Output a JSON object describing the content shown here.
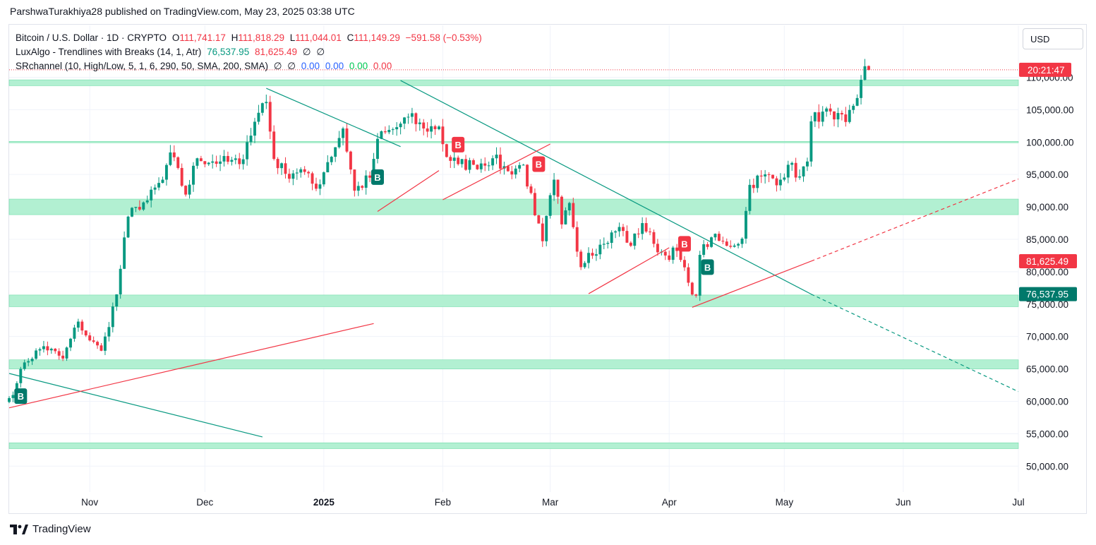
{
  "publisher_line": "ParshwaTurakhiya28 published on TradingView.com, May 23, 2025 03:38 UTC",
  "legend": {
    "symbol": "Bitcoin / U.S. Dollar · 1D · CRYPTO",
    "o_label": "O",
    "o": "111,741.17",
    "h_label": "H",
    "h": "111,818.29",
    "l_label": "L",
    "l": "111,044.01",
    "c_label": "C",
    "c": "111,149.29",
    "change": "−591.58 (−0.53%)",
    "ind1_name": "LuxAlgo - Trendlines with Breaks (14, 1, Atr)",
    "ind1_v1": "76,537.95",
    "ind1_v2": "81,625.49",
    "ind1_z1": "∅",
    "ind1_z2": "∅",
    "ind2_name": "SRchannel (10, High/Low, 5, 1, 6, 290, 50, SMA, 200, SMA)",
    "ind2_z1": "∅",
    "ind2_z2": "∅",
    "ind2_v1": "0.00",
    "ind2_v2": "0.00",
    "ind2_v3": "0.00",
    "ind2_v4": "0.00"
  },
  "currency_button": "USD",
  "price_tags": {
    "countdown": "20:21:47",
    "upper_trend": "81,625.49",
    "lower_trend": "76,537.95"
  },
  "footer_brand": "TradingView",
  "colors": {
    "up": "#089981",
    "down": "#f23645",
    "zone": "#b2f0d2",
    "zone_edge": "#6fdca9",
    "trend_down": "#089981",
    "trend_up": "#f23645"
  },
  "chart_data": {
    "type": "candlestick",
    "title": "Bitcoin / U.S. Dollar · 1D · CRYPTO",
    "y_ticks": [
      50000,
      55000,
      60000,
      65000,
      70000,
      75000,
      80000,
      85000,
      90000,
      95000,
      100000,
      105000,
      110000
    ],
    "y_tick_labels": [
      "50,000.00",
      "55,000.00",
      "60,000.00",
      "65,000.00",
      "70,000.00",
      "75,000.00",
      "80,000.00",
      "85,000.00",
      "90,000.00",
      "95,000.00",
      "100,000.00",
      "105,000.00",
      "110,000.00"
    ],
    "ylim": [
      46000,
      118000
    ],
    "x_labels": [
      {
        "label": "Nov",
        "date": "2024-11-01"
      },
      {
        "label": "Dec",
        "date": "2024-12-01"
      },
      {
        "label": "2025",
        "date": "2025-01-01",
        "bold": true
      },
      {
        "label": "Feb",
        "date": "2025-02-01"
      },
      {
        "label": "Mar",
        "date": "2025-03-01"
      },
      {
        "label": "Apr",
        "date": "2025-04-01"
      },
      {
        "label": "May",
        "date": "2025-05-01"
      },
      {
        "label": "Jun",
        "date": "2025-06-01"
      },
      {
        "label": "Jul",
        "date": "2025-07-01"
      }
    ],
    "x_range": [
      "2024-10-11",
      "2025-07-01"
    ],
    "support_resistance_zones": [
      [
        108700,
        109600
      ],
      [
        99900,
        100100
      ],
      [
        88800,
        91200
      ],
      [
        74600,
        76400
      ],
      [
        65000,
        66400
      ],
      [
        52700,
        53600
      ]
    ],
    "close_price": 111149.29,
    "trendlines": [
      {
        "color": "down",
        "from": [
          "2024-10-11",
          64300
        ],
        "to": [
          "2024-12-16",
          54500
        ]
      },
      {
        "color": "up",
        "from": [
          "2024-10-11",
          59000
        ],
        "to": [
          "2025-01-14",
          72000
        ]
      },
      {
        "color": "down",
        "from": [
          "2024-12-17",
          108300
        ],
        "to": [
          "2025-01-21",
          99300
        ]
      },
      {
        "color": "up",
        "from": [
          "2025-01-15",
          89300
        ],
        "to": [
          "2025-01-31",
          95600
        ]
      },
      {
        "color": "down",
        "from": [
          "2025-01-21",
          109500
        ],
        "to": [
          "2025-05-08",
          76537.95
        ]
      },
      {
        "color": "down",
        "dashed": true,
        "from": [
          "2025-05-08",
          76537.95
        ],
        "to": [
          "2025-07-01",
          61500
        ]
      },
      {
        "color": "up",
        "from": [
          "2025-02-01",
          91100
        ],
        "to": [
          "2025-03-01",
          99700
        ]
      },
      {
        "color": "up",
        "from": [
          "2025-03-11",
          76600
        ],
        "to": [
          "2025-04-01",
          83700
        ]
      },
      {
        "color": "up",
        "from": [
          "2025-04-07",
          74500
        ],
        "to": [
          "2025-05-08",
          81625.49
        ]
      },
      {
        "color": "up",
        "dashed": true,
        "from": [
          "2025-05-08",
          81625.49
        ],
        "to": [
          "2025-07-01",
          94300
        ]
      }
    ],
    "break_labels": [
      {
        "date": "2024-10-14",
        "price": 60800,
        "kind": "bull",
        "text": "B"
      },
      {
        "date": "2025-01-15",
        "price": 94600,
        "kind": "bull",
        "text": "B"
      },
      {
        "date": "2025-02-05",
        "price": 99600,
        "kind": "bear",
        "text": "B"
      },
      {
        "date": "2025-02-26",
        "price": 96600,
        "kind": "bear",
        "text": "B"
      },
      {
        "date": "2025-04-05",
        "price": 84300,
        "kind": "bear",
        "text": "B"
      },
      {
        "date": "2025-04-11",
        "price": 80700,
        "kind": "bull",
        "text": "B"
      }
    ],
    "anchors": [
      [
        "2024-10-11",
        60500
      ],
      [
        "2024-10-13",
        62800
      ],
      [
        "2024-10-15",
        66000
      ],
      [
        "2024-10-20",
        68500
      ],
      [
        "2024-10-25",
        66600
      ],
      [
        "2024-10-29",
        72300
      ],
      [
        "2024-11-01",
        69400
      ],
      [
        "2024-11-04",
        67800
      ],
      [
        "2024-11-05",
        70000
      ],
      [
        "2024-11-08",
        76500
      ],
      [
        "2024-11-11",
        88500
      ],
      [
        "2024-11-13",
        90000
      ],
      [
        "2024-11-16",
        91000
      ],
      [
        "2024-11-20",
        94200
      ],
      [
        "2024-11-22",
        98400
      ],
      [
        "2024-11-26",
        91900
      ],
      [
        "2024-11-29",
        97500
      ],
      [
        "2024-12-05",
        97000
      ],
      [
        "2024-12-10",
        96600
      ],
      [
        "2024-12-12",
        100000
      ],
      [
        "2024-12-16",
        106000
      ],
      [
        "2024-12-17",
        106200
      ],
      [
        "2024-12-19",
        97400
      ],
      [
        "2024-12-22",
        95100
      ],
      [
        "2024-12-26",
        95800
      ],
      [
        "2024-12-30",
        92800
      ],
      [
        "2025-01-02",
        96900
      ],
      [
        "2025-01-06",
        102100
      ],
      [
        "2025-01-09",
        92500
      ],
      [
        "2025-01-13",
        94500
      ],
      [
        "2025-01-15",
        100500
      ],
      [
        "2025-01-20",
        102300
      ],
      [
        "2025-01-23",
        103900
      ],
      [
        "2025-01-27",
        102100
      ],
      [
        "2025-01-31",
        102400
      ],
      [
        "2025-02-02",
        97700
      ],
      [
        "2025-02-05",
        96600
      ],
      [
        "2025-02-09",
        96500
      ],
      [
        "2025-02-14",
        97500
      ],
      [
        "2025-02-18",
        95500
      ],
      [
        "2025-02-22",
        96500
      ],
      [
        "2025-02-25",
        88700
      ],
      [
        "2025-02-27",
        84700
      ],
      [
        "2025-03-02",
        94200
      ],
      [
        "2025-03-04",
        87300
      ],
      [
        "2025-03-06",
        90600
      ],
      [
        "2025-03-09",
        80700
      ],
      [
        "2025-03-11",
        82900
      ],
      [
        "2025-03-15",
        84300
      ],
      [
        "2025-03-19",
        86900
      ],
      [
        "2025-03-22",
        84000
      ],
      [
        "2025-03-25",
        87500
      ],
      [
        "2025-03-28",
        84300
      ],
      [
        "2025-03-31",
        82500
      ],
      [
        "2025-04-03",
        83200
      ],
      [
        "2025-04-06",
        78300
      ],
      [
        "2025-04-08",
        76300
      ],
      [
        "2025-04-09",
        82600
      ],
      [
        "2025-04-12",
        85300
      ],
      [
        "2025-04-16",
        84000
      ],
      [
        "2025-04-20",
        85100
      ],
      [
        "2025-04-22",
        93400
      ],
      [
        "2025-04-25",
        94700
      ],
      [
        "2025-04-30",
        94200
      ],
      [
        "2025-05-02",
        96500
      ],
      [
        "2025-05-05",
        94700
      ],
      [
        "2025-05-07",
        97000
      ],
      [
        "2025-05-08",
        103200
      ],
      [
        "2025-05-11",
        104700
      ],
      [
        "2025-05-14",
        103500
      ],
      [
        "2025-05-17",
        103100
      ],
      [
        "2025-05-19",
        105600
      ],
      [
        "2025-05-20",
        106800
      ],
      [
        "2025-05-21",
        109600
      ],
      [
        "2025-05-22",
        111700
      ],
      [
        "2025-05-23",
        111149.29
      ]
    ]
  }
}
